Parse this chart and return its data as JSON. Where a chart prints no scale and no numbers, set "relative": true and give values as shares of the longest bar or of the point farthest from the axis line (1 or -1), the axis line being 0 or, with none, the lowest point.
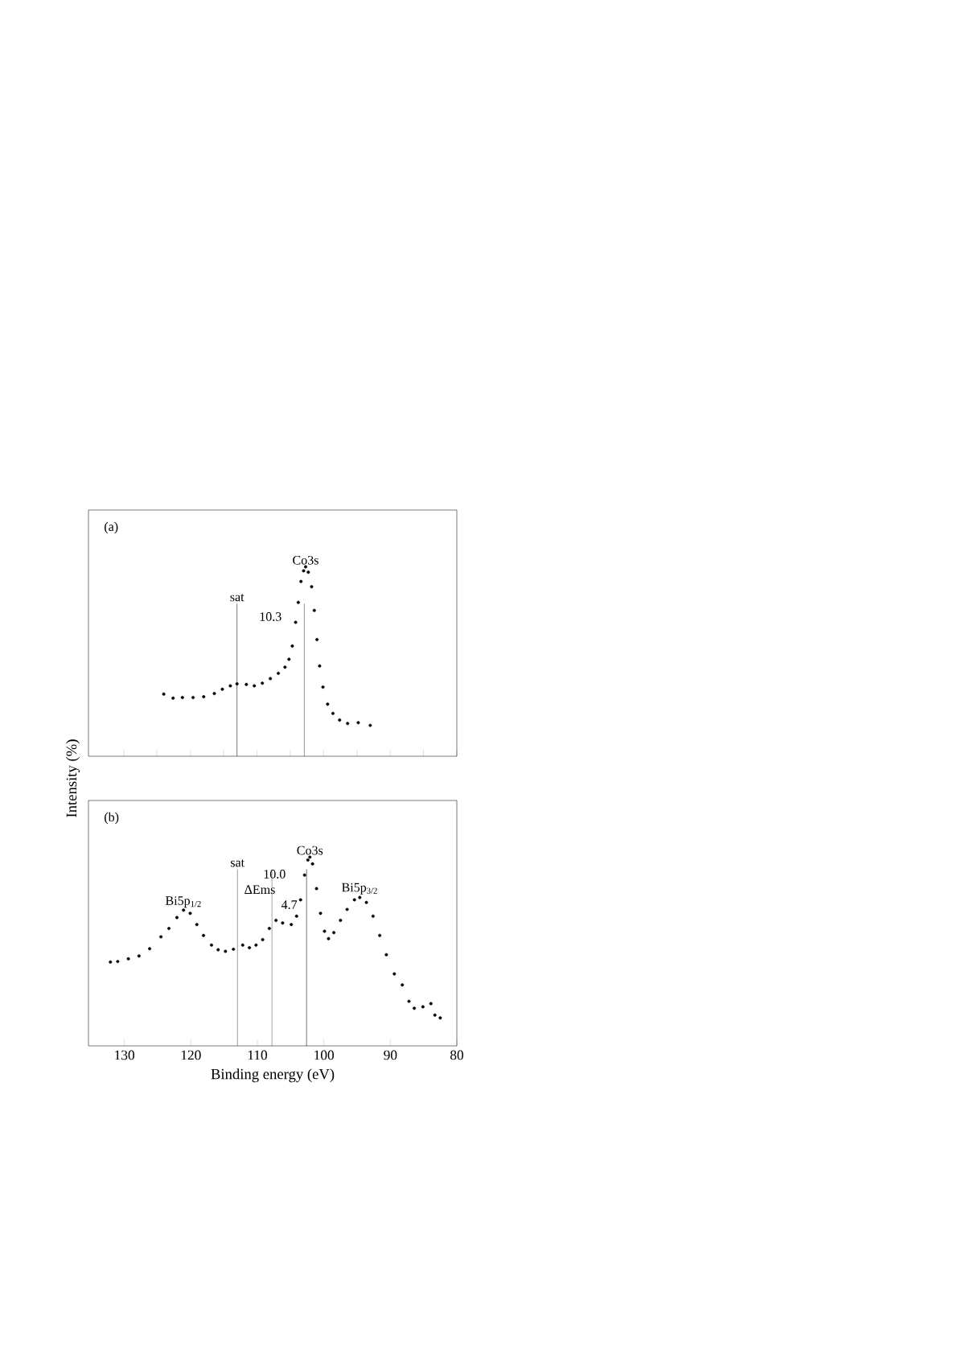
{
  "chart_data": [
    {
      "type": "scatter",
      "relative": true,
      "marker": "circle",
      "color": "#000000",
      "tick_labels": false,
      "ylabel": "Intensity (%)",
      "xlim": [
        135.3,
        80
      ],
      "xticks": [
        130,
        125,
        120,
        115,
        110,
        105,
        100,
        95,
        90,
        85,
        80
      ],
      "x": [
        124.0,
        122.6,
        121.2,
        119.6,
        118.0,
        116.4,
        115.2,
        114.0,
        113.0,
        111.6,
        110.4,
        109.2,
        108.0,
        106.8,
        105.8,
        105.2,
        104.7,
        104.2,
        103.8,
        103.4,
        103.0,
        102.7,
        102.3,
        101.8,
        101.4,
        101.0,
        100.6,
        100.1,
        99.4,
        98.6,
        97.6,
        96.4,
        94.8,
        93.0
      ],
      "values": [
        0.328,
        0.307,
        0.31,
        0.31,
        0.314,
        0.331,
        0.354,
        0.372,
        0.382,
        0.379,
        0.372,
        0.386,
        0.41,
        0.438,
        0.47,
        0.512,
        0.582,
        0.707,
        0.812,
        0.923,
        0.979,
        1.0,
        0.972,
        0.895,
        0.77,
        0.616,
        0.477,
        0.365,
        0.275,
        0.226,
        0.191,
        0.173,
        0.177,
        0.163
      ],
      "ref_lines": [
        {
          "axis": "x",
          "value": 113.0,
          "label": "sat"
        },
        {
          "axis": "x",
          "value": 102.9
        }
      ],
      "annotations": [
        "(a)",
        {
          "text": "Co3s",
          "x": 102.7,
          "y": 1.0
        },
        "10.3"
      ]
    },
    {
      "type": "scatter",
      "relative": true,
      "marker": "circle",
      "color": "#000000",
      "tick_labels": "x",
      "xlabel": "Binding energy (eV)",
      "xlim": [
        135.4,
        80
      ],
      "xticks": [
        130,
        120,
        110,
        100,
        90,
        80
      ],
      "x": [
        132.1,
        131.0,
        129.4,
        127.8,
        126.2,
        124.5,
        123.3,
        122.1,
        121.1,
        120.1,
        119.1,
        118.1,
        116.9,
        115.9,
        114.8,
        113.6,
        112.2,
        111.2,
        110.2,
        109.2,
        108.2,
        107.2,
        106.2,
        104.9,
        104.1,
        103.5,
        102.9,
        102.4,
        102.1,
        101.7,
        101.1,
        100.5,
        99.9,
        99.3,
        98.5,
        97.5,
        96.5,
        95.4,
        94.6,
        93.6,
        92.6,
        91.6,
        90.6,
        89.4,
        88.2,
        87.2,
        86.4,
        85.1,
        83.9,
        83.3,
        82.5
      ],
      "values": [
        0.444,
        0.447,
        0.461,
        0.476,
        0.515,
        0.578,
        0.622,
        0.68,
        0.719,
        0.702,
        0.643,
        0.585,
        0.534,
        0.509,
        0.501,
        0.512,
        0.534,
        0.52,
        0.534,
        0.563,
        0.622,
        0.665,
        0.651,
        0.643,
        0.687,
        0.774,
        0.905,
        0.985,
        1.0,
        0.964,
        0.833,
        0.702,
        0.607,
        0.568,
        0.6,
        0.665,
        0.723,
        0.774,
        0.786,
        0.76,
        0.687,
        0.585,
        0.483,
        0.381,
        0.323,
        0.236,
        0.199,
        0.207,
        0.224,
        0.163,
        0.148
      ],
      "ref_lines": [
        {
          "axis": "x",
          "value": 113.0,
          "label": "sat"
        },
        {
          "axis": "x",
          "value": 107.8
        },
        {
          "axis": "x",
          "value": 102.6
        }
      ],
      "annotations": [
        "(b)",
        {
          "text": "Bi5p$_{1/2}$",
          "x": 121.1,
          "y": 0.72
        },
        {
          "text": "Co3s",
          "x": 102.1,
          "y": 1.0
        },
        {
          "text": "Bi5p$_{3/2}$",
          "x": 94.6,
          "y": 0.79
        },
        "10.0",
        "ΔEms",
        "4.7"
      ]
    }
  ]
}
